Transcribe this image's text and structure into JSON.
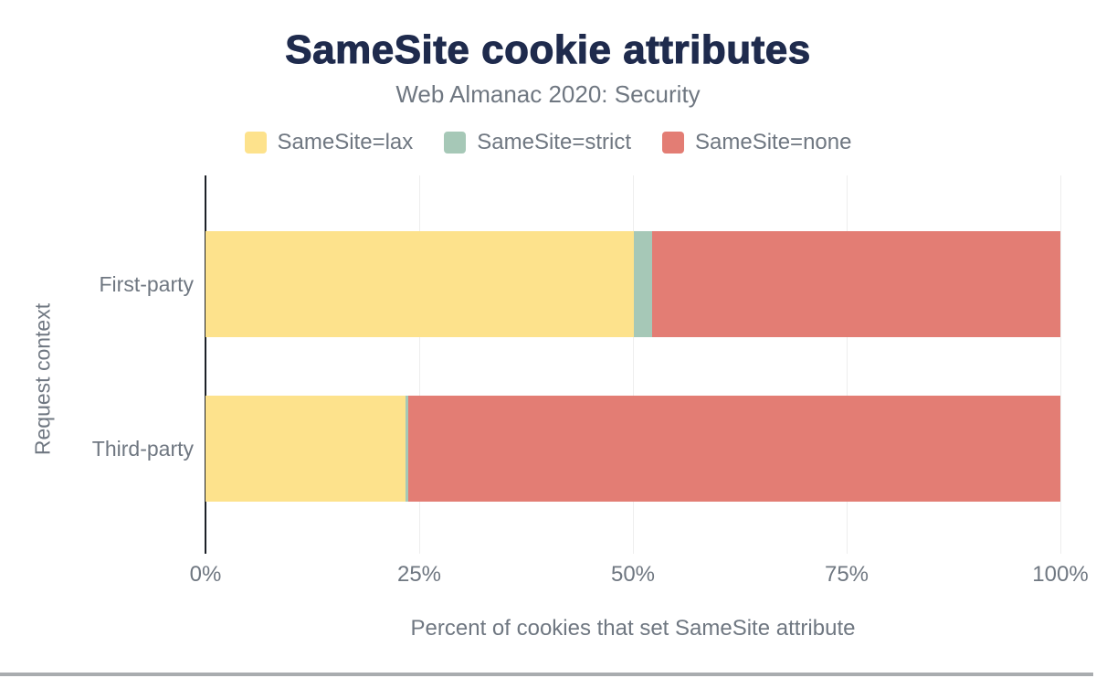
{
  "header": {
    "title": "SameSite cookie attributes",
    "subtitle": "Web Almanac 2020: Security"
  },
  "chart_data": {
    "type": "bar",
    "orientation": "horizontal",
    "stacked": true,
    "title": "SameSite cookie attributes",
    "subtitle": "Web Almanac 2020: Security",
    "categories": [
      "First-party",
      "Third-party"
    ],
    "series": [
      {
        "name": "SameSite=lax",
        "color": "#fde28c",
        "values": [
          50.1,
          23.4
        ]
      },
      {
        "name": "SameSite=strict",
        "color": "#a6c8b7",
        "values": [
          2.1,
          0.3
        ]
      },
      {
        "name": "SameSite=none",
        "color": "#e37d74",
        "values": [
          47.8,
          76.3
        ]
      }
    ],
    "xlabel": "Percent of cookies that set SameSite attribute",
    "ylabel": "Request context",
    "xlim": [
      0,
      100
    ],
    "x_tick_labels": [
      "0%",
      "25%",
      "50%",
      "75%",
      "100%"
    ],
    "x_tick_values": [
      0,
      25,
      50,
      75,
      100
    ],
    "grid": true,
    "legend_position": "top"
  },
  "colors": {
    "title": "#1f2b4d",
    "text_muted": "#6f7781",
    "axis_line": "#1d2128",
    "gridline": "#eeeeee",
    "scrollbar": "#a9acaf",
    "background": "#ffffff"
  }
}
